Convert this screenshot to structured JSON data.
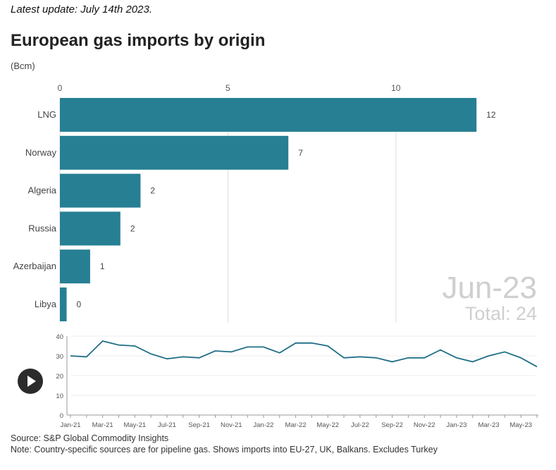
{
  "header": {
    "update": "Latest update: July 14th 2023.",
    "title": "European gas imports by origin",
    "unit": "(Bcm)"
  },
  "period": {
    "label": "Jun-23",
    "total": "Total: 24"
  },
  "controls": {
    "play": "play"
  },
  "footer": {
    "source": "Source: S&P Global Commodity Insights",
    "note": "Note: Country-specific sources are for pipeline gas. Shows imports into EU-27, UK, Balkans. Excludes Turkey"
  },
  "colors": {
    "bar": "#277f93",
    "line": "#1f6f87"
  },
  "chart_data": [
    {
      "type": "bar",
      "orientation": "horizontal",
      "categories": [
        "LNG",
        "Norway",
        "Algeria",
        "Russia",
        "Azerbaijan",
        "Libya"
      ],
      "values": [
        12.4,
        6.8,
        2.4,
        1.8,
        0.9,
        0.2
      ],
      "value_labels": [
        "12",
        "7",
        "2",
        "2",
        "1",
        "0"
      ],
      "xticks": [
        0,
        5,
        10
      ],
      "xlim": [
        0,
        14.2
      ],
      "grid": true,
      "color": "#277f93"
    },
    {
      "type": "line",
      "x": [
        "Jan-21",
        "Feb-21",
        "Mar-21",
        "Apr-21",
        "May-21",
        "Jun-21",
        "Jul-21",
        "Aug-21",
        "Sep-21",
        "Oct-21",
        "Nov-21",
        "Dec-21",
        "Jan-22",
        "Feb-22",
        "Mar-22",
        "Apr-22",
        "May-22",
        "Jun-22",
        "Jul-22",
        "Aug-22",
        "Sep-22",
        "Oct-22",
        "Nov-22",
        "Dec-22",
        "Jan-23",
        "Feb-23",
        "Mar-23",
        "Apr-23",
        "May-23",
        "Jun-23"
      ],
      "values": [
        30,
        29.5,
        37.5,
        35.5,
        35,
        31,
        28.5,
        29.5,
        29,
        32.5,
        32,
        34.5,
        34.5,
        31.5,
        36.5,
        36.5,
        35,
        29,
        29.5,
        29,
        27,
        29,
        29,
        33,
        29,
        27,
        30,
        32,
        29,
        24.5
      ],
      "xticks": [
        "Jan-21",
        "Mar-21",
        "May-21",
        "Jul-21",
        "Sep-21",
        "Nov-21",
        "Jan-22",
        "Mar-22",
        "May-22",
        "Jul-22",
        "Sep-22",
        "Nov-22",
        "Jan-23",
        "Mar-23",
        "May-23"
      ],
      "yticks": [
        0,
        10,
        20,
        30,
        40
      ],
      "ylim": [
        0,
        40
      ],
      "color": "#1f6f87"
    }
  ]
}
